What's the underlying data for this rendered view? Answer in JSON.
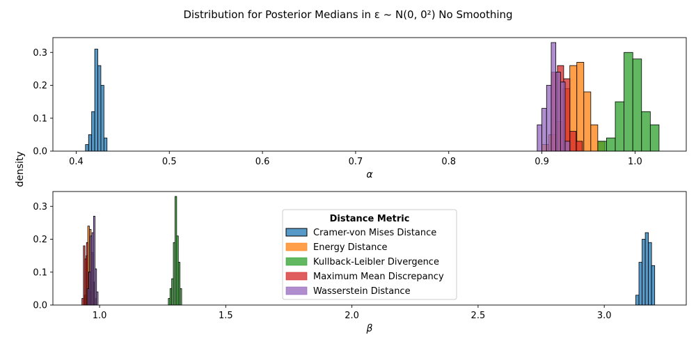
{
  "figure": {
    "title": "Distribution for Posterior Medians in ε ~ N(0, 0²) No Smoothing",
    "ylabel": "density"
  },
  "colors": {
    "Cramer-von Mises Distance": "#1f77b4",
    "Energy Distance": "#ff7f0e",
    "Kullback-Leibler Divergence": "#2ca02c",
    "Maximum Mean Discrepancy": "#d62728",
    "Wasserstein Distance": "#9467bd"
  },
  "legend": {
    "title": "Distance Metric",
    "entries": [
      "Cramer-von Mises Distance",
      "Energy Distance",
      "Kullback-Leibler Divergence",
      "Maximum Mean Discrepancy",
      "Wasserstein Distance"
    ],
    "placement": "center (bottom panel)"
  },
  "chart_data": [
    {
      "type": "histogram",
      "xlabel": "α",
      "ylabel": "density",
      "xlim": [
        0.375,
        1.055
      ],
      "ylim": [
        0,
        0.345
      ],
      "xticks": [
        0.4,
        0.5,
        0.6,
        0.7,
        0.8,
        0.9,
        1.0
      ],
      "xticklabels": [
        "0.4",
        "0.5",
        "0.6",
        "0.7",
        "0.8",
        "0.9",
        "1.0"
      ],
      "yticks": [
        0.0,
        0.1,
        0.2,
        0.3
      ],
      "yticklabels": [
        "0.0",
        "0.1",
        "0.2",
        "0.3"
      ],
      "series": [
        {
          "name": "Cramer-von Mises Distance",
          "x0": 0.41,
          "width": 0.0033,
          "values": [
            0.02,
            0.05,
            0.12,
            0.31,
            0.26,
            0.2,
            0.04
          ]
        },
        {
          "name": "Energy Distance",
          "x0": 0.9,
          "width": 0.0075,
          "values": [
            0.02,
            0.05,
            0.09,
            0.19,
            0.26,
            0.27,
            0.18,
            0.08,
            0.03
          ]
        },
        {
          "name": "Kullback-Leibler Divergence",
          "x0": 0.96,
          "width": 0.0094,
          "values": [
            0.03,
            0.04,
            0.15,
            0.3,
            0.28,
            0.12,
            0.08
          ]
        },
        {
          "name": "Maximum Mean Discrepancy",
          "x0": 0.91,
          "width": 0.0067,
          "values": [
            0.24,
            0.26,
            0.22,
            0.06,
            0.03
          ]
        },
        {
          "name": "Wasserstein Distance",
          "x0": 0.895,
          "width": 0.005,
          "values": [
            0.08,
            0.13,
            0.2,
            0.33,
            0.24,
            0.21,
            0.03
          ]
        }
      ]
    },
    {
      "type": "histogram",
      "xlabel": "β",
      "ylabel": "density",
      "xlim": [
        0.815,
        3.325
      ],
      "ylim": [
        0,
        0.345
      ],
      "xticks": [
        1.0,
        1.5,
        2.0,
        2.5,
        3.0
      ],
      "xticklabels": [
        "1.0",
        "1.5",
        "2.0",
        "2.5",
        "3.0"
      ],
      "yticks": [
        0.0,
        0.1,
        0.2,
        0.3
      ],
      "yticklabels": [
        "0.0",
        "0.1",
        "0.2",
        "0.3"
      ],
      "series": [
        {
          "name": "Cramer-von Mises Distance",
          "x0": 3.125,
          "width": 0.0125,
          "values": [
            0.03,
            0.13,
            0.2,
            0.22,
            0.19,
            0.12
          ]
        },
        {
          "name": "Energy Distance",
          "x0": 0.94,
          "width": 0.0066,
          "values": [
            0.03,
            0.15,
            0.24,
            0.23,
            0.16,
            0.07,
            0.02
          ]
        },
        {
          "name": "Kullback-Leibler Divergence",
          "x0": 1.2725,
          "width": 0.0066,
          "values": [
            0.02,
            0.05,
            0.08,
            0.19,
            0.33,
            0.21,
            0.13,
            0.05
          ]
        },
        {
          "name": "Maximum Mean Discrepancy",
          "x0": 0.93,
          "width": 0.006,
          "values": [
            0.02,
            0.18,
            0.14,
            0.19,
            0.1,
            0.04
          ]
        },
        {
          "name": "Wasserstein Distance",
          "x0": 0.952,
          "width": 0.006,
          "values": [
            0.05,
            0.1,
            0.21,
            0.22,
            0.27,
            0.11,
            0.04
          ]
        }
      ]
    }
  ]
}
